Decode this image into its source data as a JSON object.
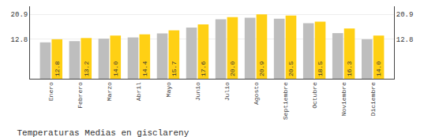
{
  "chart_data": {
    "type": "bar",
    "title": "Temperaturas Medias en gisclareny",
    "categories": [
      "Enero",
      "Febrero",
      "Marzo",
      "Abril",
      "Mayo",
      "Junio",
      "Julio",
      "Agosto",
      "Septiembre",
      "Octubre",
      "Noviembre",
      "Diciembre"
    ],
    "series": [
      {
        "color": "#BEBEBE",
        "values": [
          11.8,
          12.2,
          13.0,
          13.4,
          14.7,
          16.6,
          19.3,
          19.8,
          19.5,
          18.0,
          14.8,
          12.8
        ]
      },
      {
        "color": "#FFD014",
        "values": [
          12.8,
          13.2,
          14.0,
          14.4,
          15.7,
          17.6,
          20.0,
          20.9,
          20.5,
          18.5,
          16.3,
          14.0
        ],
        "data_labels": true,
        "value_labels": [
          "12.8",
          "13.2",
          "14.0",
          "14.4",
          "15.7",
          "17.6",
          "20.0",
          "20.9",
          "20.5",
          "18.5",
          "16.3",
          "14.0"
        ]
      }
    ],
    "ylim": [
      0,
      23.5
    ],
    "yticks": [
      12.8,
      20.9
    ],
    "y2lim": [
      0,
      23.5
    ],
    "y2ticks": [
      12.8,
      20.9
    ],
    "grid": true
  }
}
